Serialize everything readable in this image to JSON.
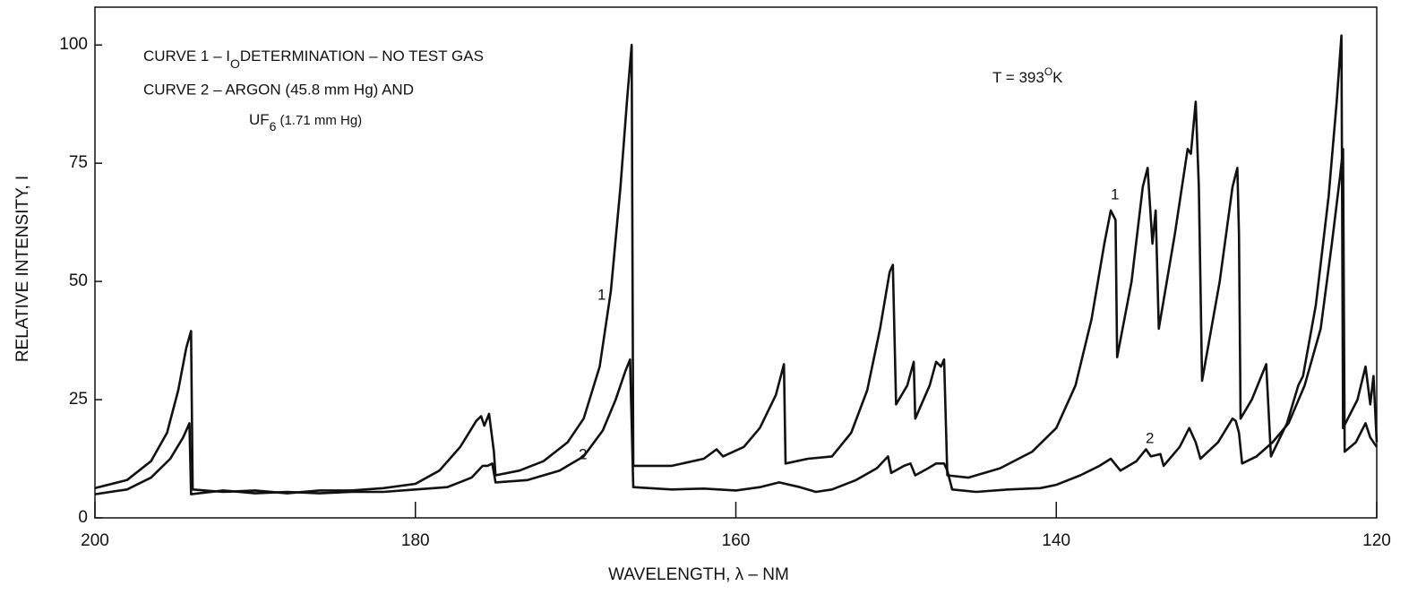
{
  "chart_data": {
    "type": "line",
    "xlabel": "WAVELENGTH, λ – NM",
    "ylabel": "RELATIVE INTENSITY, I",
    "annotations": [
      [
        "CURVE 1 – I",
        "O",
        "DETERMINATION – NO TEST GAS"
      ],
      [
        "CURVE 2 – ARGON (45.8 mm Hg) AND"
      ],
      [
        "UF",
        "6",
        "(1.71 mm Hg)"
      ],
      [
        "T = 393",
        "O",
        "K"
      ]
    ],
    "xlim": [
      200,
      120
    ],
    "xticks": [
      200,
      180,
      160,
      140,
      120
    ],
    "ylim": [
      0,
      108
    ],
    "yticks": [
      0,
      25,
      50,
      75,
      100
    ],
    "grid": false,
    "series": [
      {
        "name": "1",
        "color": "#111111",
        "x": [
          200,
          198,
          196.5,
          195.5,
          194.8,
          194.3,
          194.0,
          193.9,
          192,
          190,
          188,
          186,
          184,
          182,
          180,
          178.5,
          177.2,
          176.2,
          175.9,
          175.7,
          175.4,
          175.1,
          175.0,
          173.5,
          172,
          170.5,
          169.5,
          168.5,
          167.8,
          167.2,
          166.8,
          166.5,
          166.4,
          164,
          162,
          161.2,
          160.8,
          159.5,
          158.5,
          157.5,
          157.0,
          156.9,
          155.5,
          154,
          152.8,
          151.8,
          151.0,
          150.4,
          150.2,
          150.0,
          149.3,
          148.9,
          148.8,
          147.9,
          147.5,
          147.2,
          147.0,
          146.8,
          145.5,
          143.5,
          141.5,
          140,
          138.8,
          137.8,
          137.0,
          136.6,
          136.3,
          136.2,
          135.3,
          134.6,
          134.3,
          134.0,
          133.8,
          133.6,
          132.6,
          131.8,
          131.6,
          131.3,
          131.1,
          130.9,
          129.8,
          129.0,
          128.7,
          128.6,
          128.5,
          127.8,
          126.9,
          126.6,
          125.6,
          124.9,
          124.6,
          123.8,
          123.0,
          122.5,
          122.2,
          122.1,
          121.2,
          120.7,
          120.4,
          120.2,
          120
        ],
        "values": [
          6.3,
          8,
          12,
          18,
          27,
          36,
          39.5,
          6,
          5.5,
          5.8,
          5.2,
          5.8,
          5.8,
          6.3,
          7.2,
          10,
          15,
          20.5,
          21.5,
          19.5,
          22,
          14,
          9,
          10,
          12,
          16,
          21,
          32,
          48,
          70,
          88,
          100,
          11,
          11,
          12.5,
          14.5,
          13,
          15,
          19,
          26,
          32.5,
          11.5,
          12.5,
          13,
          18,
          27,
          40,
          52,
          53.5,
          24,
          28,
          33,
          21,
          28,
          33,
          32,
          33.5,
          9,
          8.5,
          10.5,
          14,
          19,
          28,
          42,
          58,
          65,
          63,
          34,
          50,
          70,
          74,
          58,
          65,
          40,
          60,
          78,
          77,
          88,
          70,
          29,
          50,
          70,
          74,
          60,
          21,
          25,
          32.5,
          13,
          20,
          28,
          30,
          45,
          68,
          88,
          102,
          19,
          25,
          32,
          24,
          30,
          16
        ]
      },
      {
        "name": "2",
        "color": "#111111",
        "x": [
          200,
          198,
          196.5,
          195.3,
          194.5,
          194.1,
          194.0,
          192,
          190,
          188,
          186,
          184,
          182,
          180,
          178,
          176.5,
          175.8,
          175.5,
          175.2,
          175.0,
          173,
          171,
          169.5,
          168.3,
          167.5,
          166.9,
          166.6,
          166.4,
          164,
          162,
          160,
          158.5,
          157.3,
          156,
          155,
          154,
          152.5,
          151.2,
          150.5,
          150.3,
          149.5,
          149.1,
          148.8,
          148,
          147.5,
          147.0,
          146.8,
          146.5,
          145,
          143,
          141,
          140,
          138.5,
          137.3,
          136.6,
          136.0,
          135,
          134.4,
          134.1,
          133.5,
          133.3,
          132.3,
          131.7,
          131.3,
          131.0,
          129.9,
          129.0,
          128.8,
          128.6,
          128.4,
          127.5,
          126.5,
          125.5,
          124.5,
          123.5,
          122.8,
          122.3,
          122.1,
          122.0,
          121.3,
          120.7,
          120.4,
          120
        ],
        "values": [
          5,
          6,
          8.5,
          12.5,
          17,
          20,
          5,
          5.8,
          5.2,
          5.5,
          5.2,
          5.5,
          5.5,
          6,
          6.5,
          8.5,
          11,
          11,
          11.5,
          7.5,
          8,
          10,
          13,
          18.5,
          25,
          31,
          33.5,
          6.5,
          6,
          6.2,
          5.8,
          6.5,
          7.5,
          6.5,
          5.5,
          6,
          8,
          10.5,
          13,
          9.5,
          11,
          11.5,
          9,
          10.5,
          11.5,
          11.5,
          10,
          6,
          5.5,
          6,
          6.3,
          7,
          9,
          11,
          12.5,
          10,
          12,
          14.5,
          13,
          13.5,
          11,
          15,
          19,
          16,
          12.5,
          16,
          21,
          20.5,
          18,
          11.5,
          13,
          16,
          20,
          28,
          40,
          58,
          72,
          78,
          14,
          16,
          20,
          17,
          15
        ]
      }
    ]
  }
}
